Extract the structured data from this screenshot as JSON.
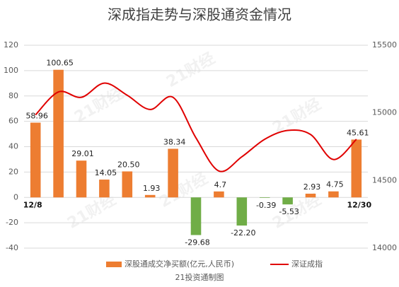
{
  "chart_data": {
    "type": "bar",
    "title": "深成指走势与深股通资金情况",
    "watermark": "21财经",
    "source": "21投资通制图",
    "categories": [
      "12/8",
      null,
      null,
      null,
      null,
      null,
      null,
      null,
      null,
      null,
      null,
      null,
      null,
      null,
      "12/30"
    ],
    "series": [
      {
        "name": "深股通成交净买额(亿元,人民币)",
        "type": "bar",
        "color": "#ed7d31",
        "negative_color": "#70ad47",
        "values": [
          58.96,
          100.65,
          29.01,
          14.05,
          20.5,
          1.93,
          38.34,
          -29.68,
          4.7,
          -22.2,
          -0.39,
          -5.53,
          2.93,
          4.75,
          45.61
        ],
        "value_labels": [
          "58.96",
          "100.65",
          "29.01",
          "14.05",
          "20.50",
          "1.93",
          "38.34",
          "-29.68",
          "4.7",
          "-22.20",
          "-0.39",
          "-5.53",
          "2.93",
          "4.75",
          "45.61"
        ]
      },
      {
        "name": "深证成指",
        "type": "line",
        "axis": "y2",
        "color": "#e00000",
        "values": [
          14985,
          15155,
          15115,
          15220,
          15130,
          15025,
          15115,
          14815,
          14570,
          14675,
          14805,
          14870,
          14840,
          14655,
          14805
        ]
      }
    ],
    "ylim": [
      -40,
      120
    ],
    "yticks": [
      -40,
      -20,
      0,
      20,
      40,
      60,
      80,
      100,
      120
    ],
    "y2lim": [
      14000,
      15500
    ],
    "y2ticks": [
      14000,
      14500,
      15000,
      15500
    ],
    "grid": true
  }
}
